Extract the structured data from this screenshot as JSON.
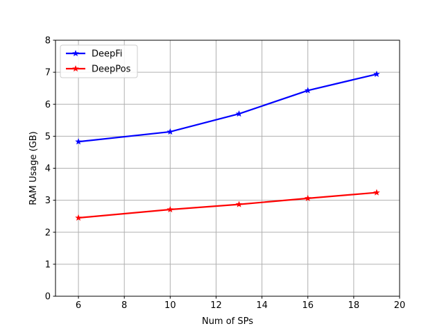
{
  "chart_data": {
    "type": "line",
    "title": "",
    "xlabel": "Num of SPs",
    "ylabel": "RAM Usage (GB)",
    "xlim": [
      5,
      20
    ],
    "ylim": [
      0,
      8
    ],
    "xticks": [
      6,
      8,
      10,
      12,
      14,
      16,
      18,
      20
    ],
    "yticks": [
      0,
      1,
      2,
      3,
      4,
      5,
      6,
      7,
      8
    ],
    "grid": true,
    "legend_position": "top-left",
    "x": [
      6,
      10,
      13,
      16,
      19
    ],
    "series": [
      {
        "name": "DeepFi",
        "color": "#0000ff",
        "marker": "star",
        "values": [
          4.83,
          5.14,
          5.7,
          6.43,
          6.94
        ]
      },
      {
        "name": "DeepPos",
        "color": "#ff0000",
        "marker": "star",
        "values": [
          2.45,
          2.71,
          2.87,
          3.06,
          3.24
        ]
      }
    ]
  }
}
